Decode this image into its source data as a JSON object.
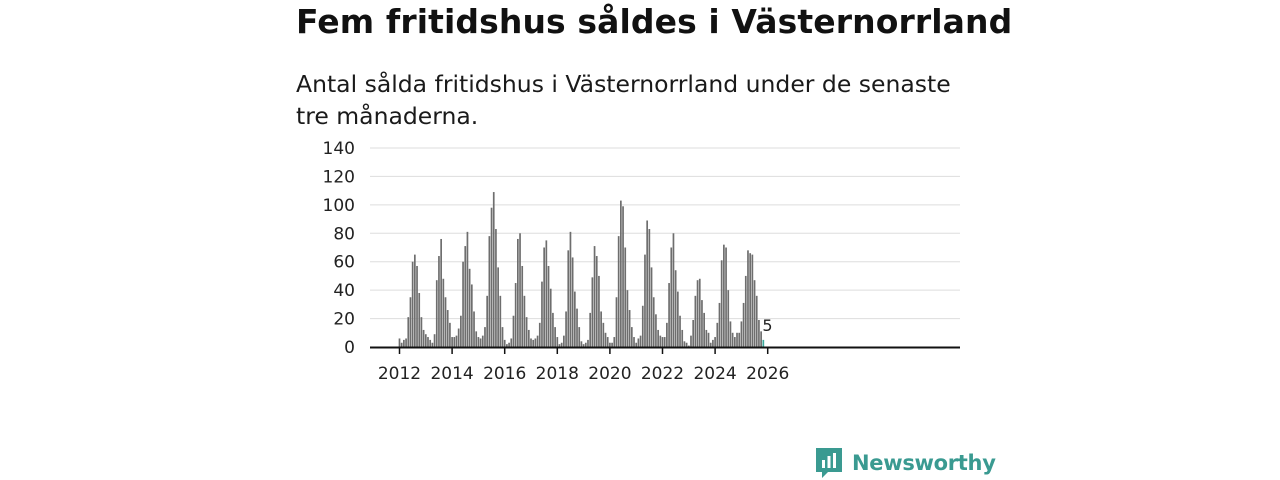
{
  "header": {
    "title": "Fem fritidshus såldes i Västernorrland",
    "subtitle": "Antal sålda fritidshus i Västernorrland under de senaste tre månaderna."
  },
  "brand": {
    "name": "Newsworthy",
    "color": "#3a9a91"
  },
  "colors": {
    "bar": "#6e6e6e",
    "highlight": "#3aa89c",
    "grid": "#dddddd",
    "axis": "#111111"
  },
  "chart_data": {
    "type": "bar",
    "title": "",
    "xlabel": "",
    "ylabel": "",
    "ylim": [
      0,
      140
    ],
    "yticks": [
      0,
      20,
      40,
      60,
      80,
      100,
      120,
      140
    ],
    "xticks": [
      "2012",
      "2014",
      "2016",
      "2018",
      "2020",
      "2022",
      "2024",
      "2026"
    ],
    "grid": true,
    "start": "2012-01",
    "annotation": {
      "label": "5",
      "x": "2026-01",
      "value": 5
    },
    "series": [
      {
        "name": "",
        "values": [
          6,
          3,
          5,
          6,
          21,
          35,
          60,
          65,
          57,
          38,
          21,
          12,
          9,
          7,
          5,
          3,
          9,
          47,
          64,
          76,
          48,
          35,
          26,
          17,
          7,
          7,
          8,
          13,
          22,
          60,
          71,
          81,
          55,
          44,
          25,
          11,
          7,
          6,
          8,
          14,
          36,
          78,
          98,
          109,
          83,
          56,
          36,
          14,
          5,
          2,
          3,
          6,
          22,
          45,
          76,
          80,
          57,
          36,
          21,
          12,
          6,
          5,
          6,
          8,
          17,
          46,
          70,
          75,
          57,
          41,
          24,
          14,
          7,
          2,
          3,
          8,
          25,
          68,
          81,
          63,
          39,
          27,
          14,
          4,
          2,
          3,
          5,
          24,
          49,
          71,
          64,
          50,
          25,
          17,
          10,
          7,
          3,
          3,
          7,
          35,
          78,
          103,
          99,
          70,
          40,
          26,
          14,
          7,
          3,
          6,
          8,
          29,
          65,
          89,
          83,
          56,
          35,
          23,
          12,
          8,
          7,
          7,
          17,
          45,
          70,
          80,
          54,
          39,
          22,
          12,
          4,
          3,
          1,
          8,
          19,
          36,
          47,
          48,
          33,
          24,
          12,
          10,
          3,
          5,
          7,
          17,
          31,
          61,
          72,
          70,
          40,
          18,
          10,
          7,
          10,
          10,
          18,
          31,
          50,
          68,
          66,
          65,
          47,
          36,
          19,
          11,
          5
        ]
      }
    ]
  }
}
